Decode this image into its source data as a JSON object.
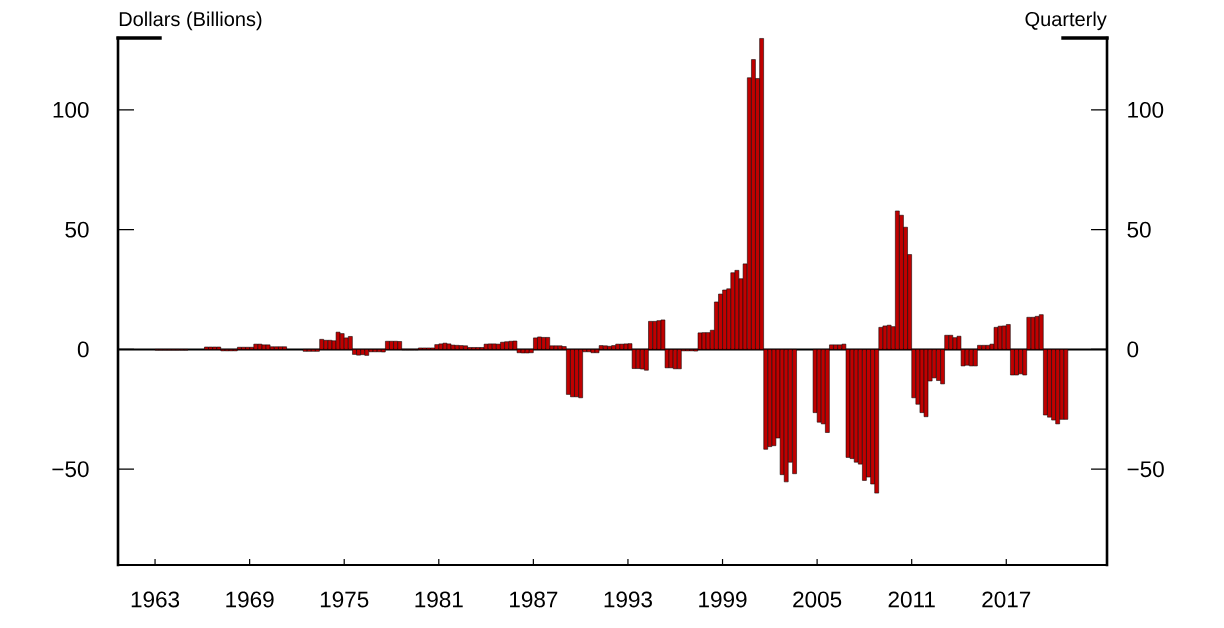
{
  "chart_data": {
    "type": "bar",
    "ylabel": "Dollars (Billions)",
    "annotations": [
      "Quarterly"
    ],
    "color": "#c00000",
    "x": [
      1963.13,
      1963.39,
      1963.65,
      1963.91,
      1964.17,
      1964.43,
      1964.7,
      1964.96,
      1965.22,
      1965.48,
      1965.74,
      1966.0,
      1966.26,
      1966.52,
      1966.78,
      1967.04,
      1967.3,
      1967.57,
      1967.83,
      1968.09,
      1968.35,
      1968.61,
      1968.87,
      1969.13,
      1969.39,
      1969.65,
      1969.91,
      1970.17,
      1970.43,
      1970.7,
      1970.96,
      1971.22,
      1971.48,
      1971.74,
      1972.0,
      1972.26,
      1972.52,
      1972.78,
      1973.04,
      1973.3,
      1973.57,
      1973.83,
      1974.09,
      1974.35,
      1974.61,
      1974.87,
      1975.13,
      1975.39,
      1975.65,
      1975.91,
      1976.17,
      1976.43,
      1976.7,
      1976.96,
      1977.22,
      1977.48,
      1977.74,
      1978.0,
      1978.26,
      1978.52,
      1978.78,
      1979.04,
      1979.3,
      1979.57,
      1979.83,
      1980.09,
      1980.35,
      1980.61,
      1980.87,
      1981.13,
      1981.39,
      1981.65,
      1981.91,
      1982.17,
      1982.43,
      1982.7,
      1982.96,
      1983.22,
      1983.48,
      1983.74,
      1984.0,
      1984.26,
      1984.52,
      1984.78,
      1985.04,
      1985.3,
      1985.57,
      1985.83,
      1986.09,
      1986.35,
      1986.61,
      1986.87,
      1987.13,
      1987.39,
      1987.65,
      1987.91,
      1988.17,
      1988.43,
      1988.7,
      1988.96,
      1989.22,
      1989.48,
      1989.74,
      1990.0,
      1990.26,
      1990.52,
      1990.78,
      1991.04,
      1991.3,
      1991.57,
      1991.83,
      1992.09,
      1992.35,
      1992.61,
      1992.87,
      1993.13,
      1993.39,
      1993.65,
      1993.91,
      1994.17,
      1994.43,
      1994.7,
      1994.96,
      1995.22,
      1995.48,
      1995.74,
      1996.0,
      1996.26,
      1996.52,
      1996.78,
      1997.04,
      1997.3,
      1997.57,
      1997.83,
      1998.09,
      1998.35,
      1998.61,
      1998.87,
      1999.13,
      1999.39,
      1999.65,
      1999.91,
      2000.17,
      2000.43,
      2000.7,
      2000.96,
      2001.22,
      2001.48,
      2001.74,
      2002.0,
      2002.26,
      2002.52,
      2002.78,
      2003.04,
      2003.3,
      2003.57,
      2003.83,
      2004.09,
      2004.35,
      2004.61,
      2004.87,
      2005.13,
      2005.39,
      2005.65,
      2005.91,
      2006.17,
      2006.43,
      2006.7,
      2006.96,
      2007.22,
      2007.48,
      2007.74,
      2008.0,
      2008.26,
      2008.52,
      2008.78,
      2009.04,
      2009.3,
      2009.57,
      2009.83,
      2010.09,
      2010.35,
      2010.61,
      2010.87,
      2011.13,
      2011.39,
      2011.65,
      2011.91,
      2012.17,
      2012.43,
      2012.7,
      2012.96,
      2013.22,
      2013.48,
      2013.74,
      2014.0,
      2014.26,
      2014.52,
      2014.78,
      2015.04,
      2015.3,
      2015.57,
      2015.83,
      2016.09,
      2016.35,
      2016.61,
      2016.87,
      2017.13,
      2017.39,
      2017.65,
      2017.91,
      2018.17,
      2018.43,
      2018.7,
      2018.96,
      2019.22,
      2019.48,
      2019.74,
      2020.0,
      2020.26,
      2020.52,
      2020.78
    ],
    "values": [
      -0.3,
      -0.3,
      -0.3,
      -0.3,
      -0.3,
      -0.3,
      -0.3,
      -0.3,
      null,
      null,
      null,
      null,
      1.0,
      1.0,
      1.0,
      1.0,
      -0.6,
      -0.6,
      -0.6,
      -0.6,
      0.9,
      0.9,
      0.9,
      0.9,
      2.2,
      2.2,
      1.9,
      1.9,
      1.1,
      1.1,
      1.1,
      1.1,
      null,
      null,
      null,
      null,
      -0.8,
      -0.8,
      -0.8,
      -0.8,
      4.2,
      3.8,
      3.8,
      3.6,
      7.2,
      6.6,
      4.8,
      5.4,
      -2.1,
      -2.4,
      -2.2,
      -2.5,
      -1.0,
      -1.0,
      -1.0,
      -1.1,
      3.4,
      3.4,
      3.4,
      3.3,
      -0.2,
      -0.2,
      -0.2,
      -0.2,
      0.6,
      0.6,
      0.6,
      0.6,
      2.0,
      2.3,
      2.6,
      2.3,
      1.8,
      1.7,
      1.6,
      1.5,
      0.8,
      0.8,
      0.8,
      0.8,
      2.2,
      2.3,
      2.3,
      2.2,
      3.0,
      3.2,
      3.4,
      3.5,
      -1.4,
      -1.5,
      -1.5,
      -1.4,
      4.8,
      5.2,
      5.0,
      5.0,
      1.5,
      1.5,
      1.5,
      1.2,
      -18.8,
      -19.8,
      -19.8,
      -20.2,
      -1.0,
      -1.0,
      -1.4,
      -1.4,
      1.6,
      1.5,
      1.3,
      1.6,
      2.2,
      2.2,
      2.3,
      2.4,
      -8.0,
      -8.0,
      -8.2,
      -8.7,
      11.7,
      11.7,
      12.0,
      12.3,
      -7.7,
      -7.7,
      -8.1,
      -8.1,
      -0.6,
      -0.6,
      -0.6,
      -0.7,
      6.9,
      7.0,
      7.0,
      8.0,
      19.8,
      23.1,
      24.8,
      25.3,
      32.0,
      33.0,
      29.5,
      35.7,
      113.4,
      121.0,
      113.1,
      129.8,
      -41.7,
      -40.6,
      -40.2,
      -37.0,
      -52.3,
      -55.3,
      -47.1,
      -51.9,
      null,
      null,
      null,
      null,
      -26.4,
      -30.4,
      -31.1,
      -34.7,
      1.9,
      1.9,
      1.9,
      2.2,
      -45.1,
      -45.6,
      -47.1,
      -47.9,
      -54.7,
      -53.3,
      -56.2,
      -60.0,
      9.2,
      9.8,
      10.1,
      9.5,
      57.8,
      56.0,
      51.0,
      39.6,
      -20.2,
      -22.9,
      -26.4,
      -28.1,
      -13.2,
      -11.9,
      -13.0,
      -14.4,
      5.9,
      5.9,
      4.9,
      5.5,
      -6.9,
      -6.6,
      -6.9,
      -6.9,
      1.7,
      1.7,
      1.7,
      2.2,
      9.2,
      9.7,
      9.8,
      10.4,
      -10.7,
      -10.7,
      -10.2,
      -10.7,
      13.4,
      13.4,
      13.8,
      14.5,
      -27.4,
      -28.3,
      -29.5,
      -31.1,
      -29.2,
      -29.2
    ],
    "xlim": [
      1960.65,
      2023.39
    ],
    "xticks": [
      1963,
      1969,
      1975,
      1981,
      1987,
      1993,
      1999,
      2005,
      2011,
      2017
    ],
    "ylim": [
      -90,
      130
    ],
    "yticks": [
      {
        "value": -50,
        "label": "−50"
      },
      0,
      50,
      100
    ],
    "y2lim": [
      -90,
      130
    ],
    "y2ticks": [
      {
        "value": -50,
        "label": "−50"
      },
      0,
      50,
      100
    ],
    "ref_lines": [
      {
        "axis": "y",
        "value": 0,
        "color": "#000000"
      }
    ]
  }
}
